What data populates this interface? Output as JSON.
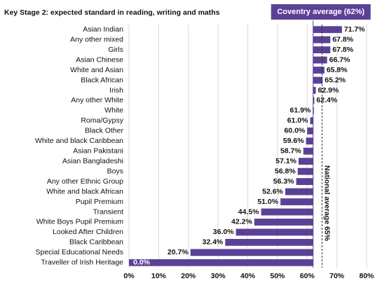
{
  "chart_data": {
    "type": "bar",
    "orientation": "horizontal",
    "title": "Key Stage 2: expected standard in reading, writing and maths",
    "categories": [
      "Asian Indian",
      "Any other mixed",
      "Girls",
      "Asian Chinese",
      "White and Asian",
      "Black African",
      "Irish",
      "Any other White",
      "White",
      "Roma/Gypsy",
      "Black Other",
      "White and black Caribbean",
      "Asian Pakistani",
      "Asian Bangladeshi",
      "Boys",
      "Any other Ethnic Group",
      "White and black African",
      "Pupil Premium",
      "Transient",
      "White Boys Pupil Premium",
      "Looked After Children",
      "Black Caribbean",
      "Special Educational Needs",
      "Traveller of Irish Heritage"
    ],
    "values": [
      71.7,
      67.8,
      67.8,
      66.7,
      65.8,
      65.2,
      62.9,
      62.4,
      61.9,
      61.0,
      60.0,
      59.6,
      58.7,
      57.1,
      56.8,
      56.3,
      52.6,
      51.0,
      44.5,
      42.2,
      36.0,
      32.4,
      20.7,
      0.0
    ],
    "value_labels": [
      "71.7%",
      "67.8%",
      "67.8%",
      "66.7%",
      "65.8%",
      "65.2%",
      "62.9%",
      "62.4%",
      "61.9%",
      "61.0%",
      "60.0%",
      "59.6%",
      "58.7%",
      "57.1%",
      "56.8%",
      "56.3%",
      "52.6%",
      "51.0%",
      "44.5%",
      "42.2%",
      "36.0%",
      "32.4%",
      "20.7%",
      "0.0%"
    ],
    "color": "#5b4196",
    "baseline": {
      "value": 62,
      "label": "Coventry average (62%)"
    },
    "reference_line": {
      "value": 65,
      "label": "National average 65%"
    },
    "xlim": [
      0,
      80
    ],
    "xticks": [
      {
        "value": 0,
        "label": "0%"
      },
      {
        "value": 10,
        "label": "10%"
      },
      {
        "value": 20,
        "label": "20%"
      },
      {
        "value": 30,
        "label": "30%"
      },
      {
        "value": 40,
        "label": "40%"
      },
      {
        "value": 50,
        "label": "50%"
      },
      {
        "value": 60,
        "label": "60%"
      },
      {
        "value": 70,
        "label": "70%"
      },
      {
        "value": 80,
        "label": "80%"
      }
    ],
    "grid": true
  }
}
